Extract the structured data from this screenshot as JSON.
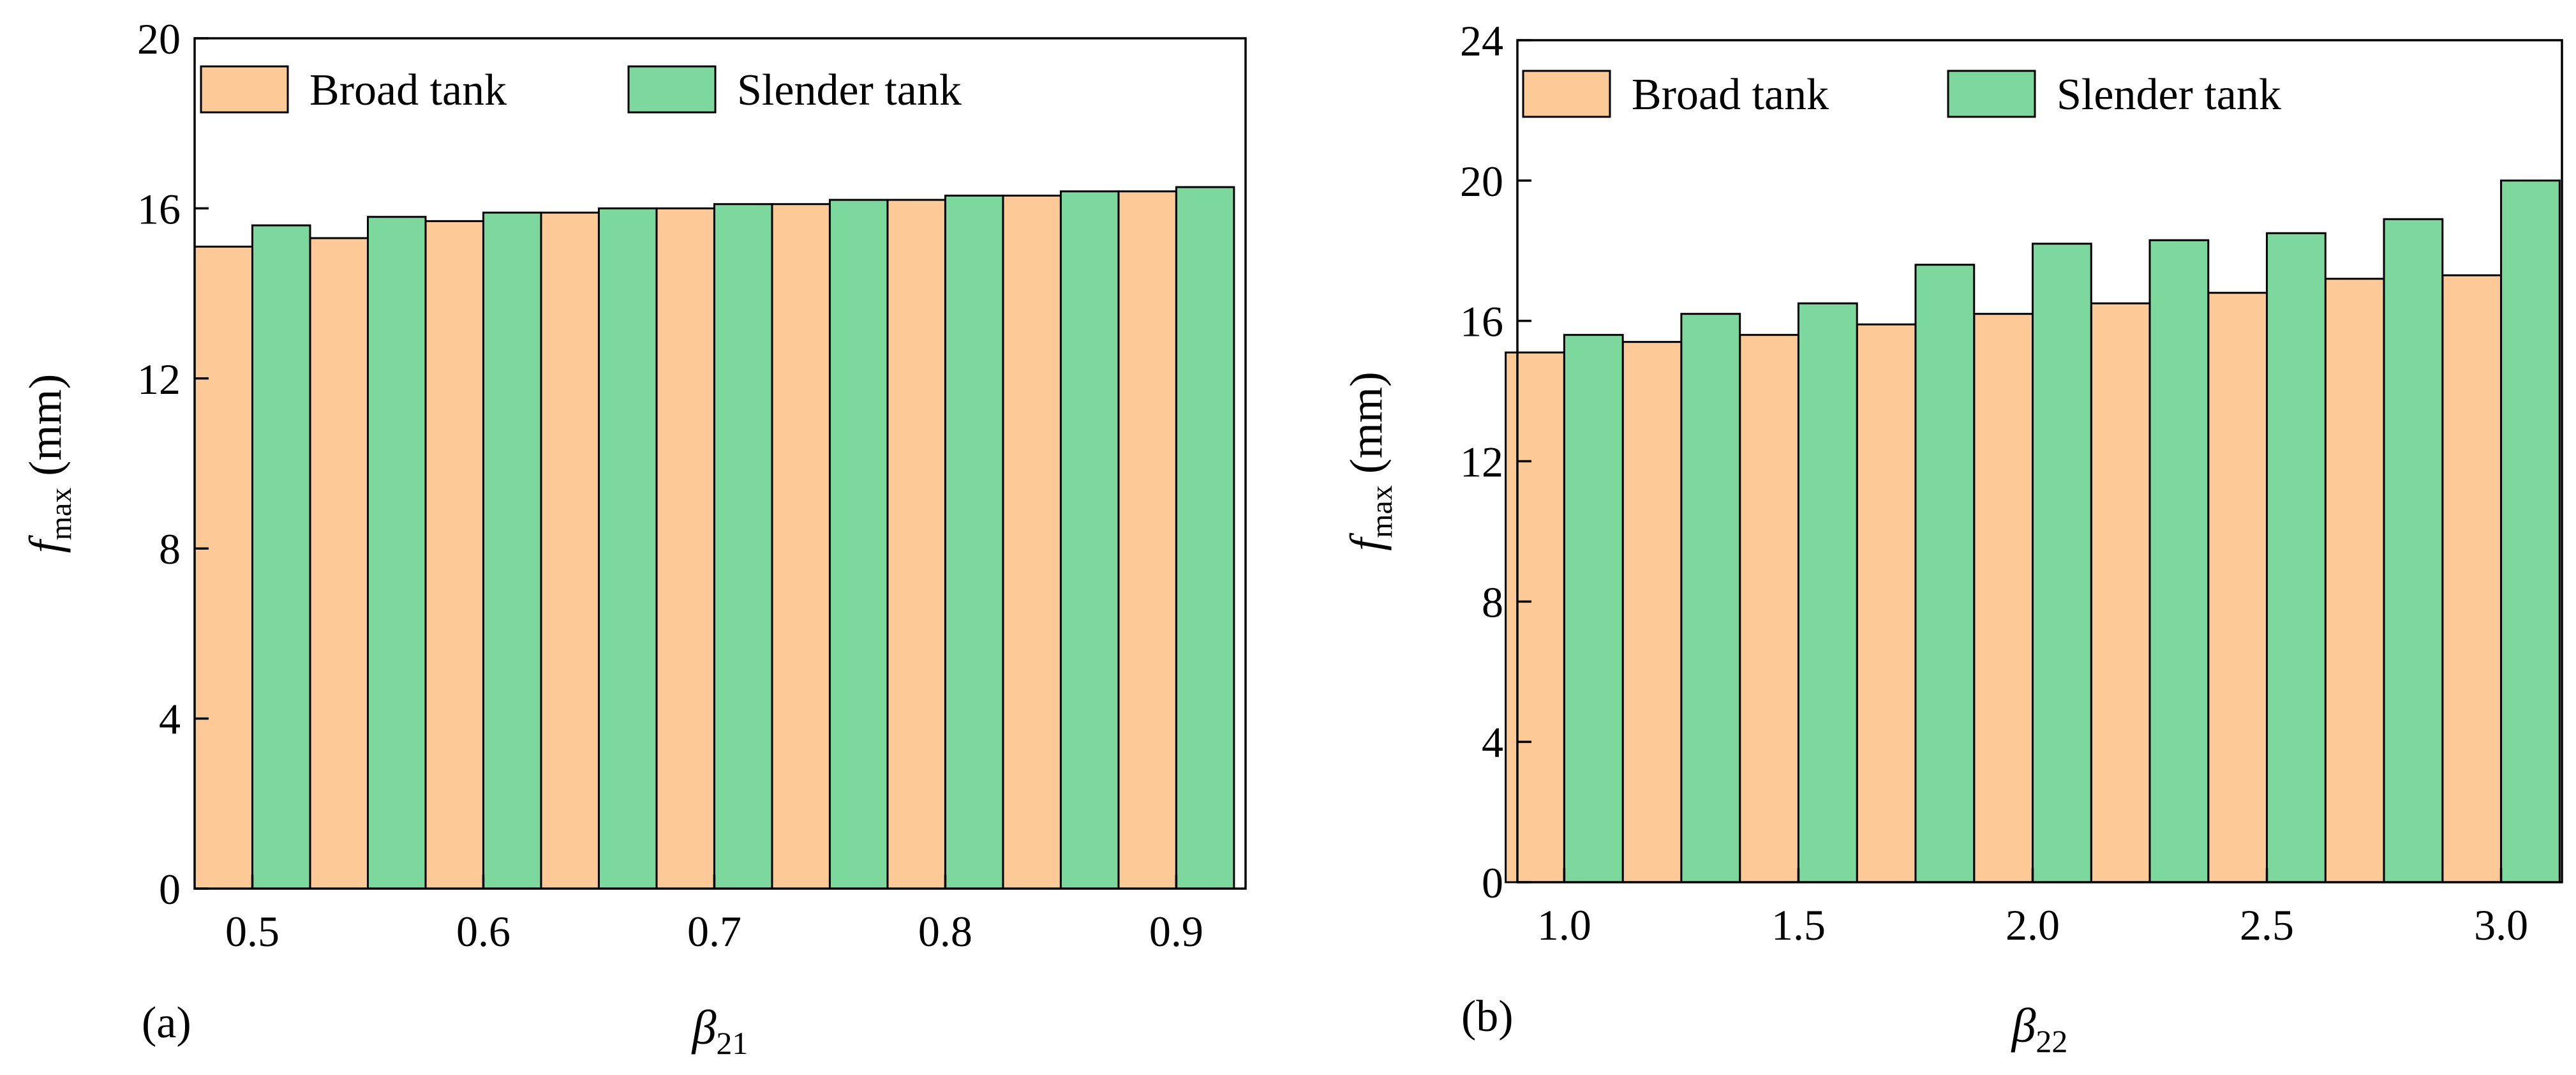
{
  "colors": {
    "broad": "#fcc997",
    "slender": "#7dd89e",
    "stroke": "#000000"
  },
  "chart_data": [
    {
      "type": "bar",
      "panel_label": "(a)",
      "title": "",
      "xlabel": {
        "symbol": "β",
        "subscript": "21"
      },
      "ylabel": {
        "symbol": "f",
        "subscript": "max",
        "unit": "(mm)"
      },
      "x": [
        0.5,
        0.55,
        0.6,
        0.65,
        0.7,
        0.75,
        0.8,
        0.85,
        0.9
      ],
      "xlim": [
        0.475,
        0.93
      ],
      "ylim": [
        0,
        20
      ],
      "xticks": [
        0.5,
        0.6,
        0.7,
        0.8,
        0.9
      ],
      "xtick_labels": [
        "0.5",
        "0.6",
        "0.7",
        "0.8",
        "0.9"
      ],
      "yticks": [
        0,
        4,
        8,
        12,
        16,
        20
      ],
      "ytick_labels": [
        "0",
        "4",
        "8",
        "12",
        "16",
        "20"
      ],
      "series": [
        {
          "name": "Broad tank",
          "values": [
            15.1,
            15.3,
            15.7,
            15.9,
            16.0,
            16.1,
            16.2,
            16.3,
            16.4
          ]
        },
        {
          "name": "Slender tank",
          "values": [
            15.6,
            15.8,
            15.9,
            16.0,
            16.1,
            16.2,
            16.3,
            16.4,
            16.5
          ]
        }
      ],
      "legend_position": "top"
    },
    {
      "type": "bar",
      "panel_label": "(b)",
      "title": "",
      "xlabel": {
        "symbol": "β",
        "subscript": "22"
      },
      "ylabel": {
        "symbol": "f",
        "subscript": "max",
        "unit": "(mm)"
      },
      "x": [
        1.0,
        1.25,
        1.5,
        1.75,
        2.0,
        2.25,
        2.5,
        2.75,
        3.0
      ],
      "xlim": [
        0.9,
        3.13
      ],
      "ylim": [
        0,
        24
      ],
      "xticks": [
        1.0,
        1.5,
        2.0,
        2.5,
        3.0
      ],
      "xtick_labels": [
        "1.0",
        "1.5",
        "2.0",
        "2.5",
        "3.0"
      ],
      "yticks": [
        0,
        4,
        8,
        12,
        16,
        20,
        24
      ],
      "ytick_labels": [
        "0",
        "4",
        "8",
        "12",
        "16",
        "20",
        "24"
      ],
      "series": [
        {
          "name": "Broad tank",
          "values": [
            15.1,
            15.4,
            15.6,
            15.9,
            16.2,
            16.5,
            16.8,
            17.2,
            17.3
          ]
        },
        {
          "name": "Slender tank",
          "values": [
            15.6,
            16.2,
            16.5,
            17.6,
            18.2,
            18.3,
            18.5,
            18.9,
            20.0
          ]
        }
      ],
      "legend_position": "top"
    }
  ]
}
